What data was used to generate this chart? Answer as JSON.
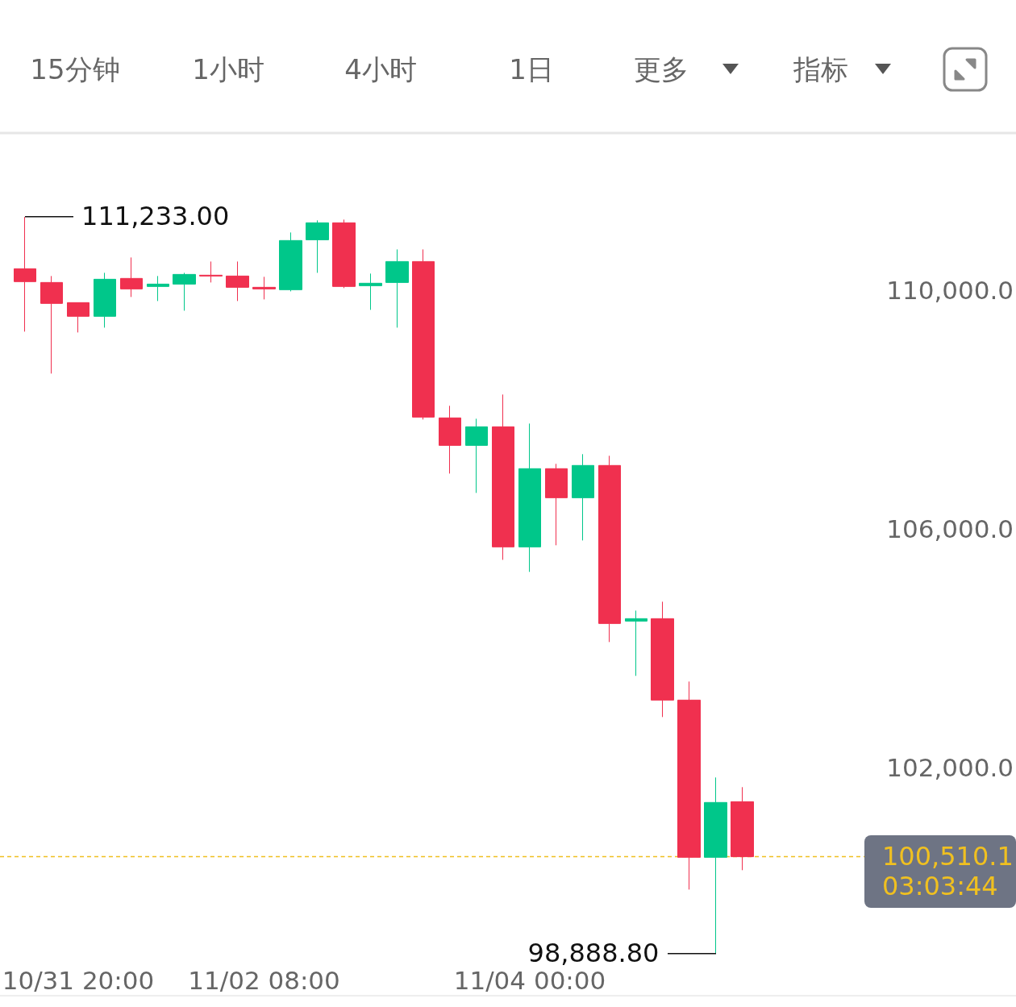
{
  "chart_data": {
    "type": "candlestick",
    "categories": [
      null,
      null,
      "10/31 20:00",
      null,
      null,
      null,
      null,
      null,
      null,
      "11/02 08:00",
      null,
      null,
      null,
      null,
      null,
      null,
      null,
      null,
      null,
      "11/04 00:00",
      null,
      null,
      null,
      null,
      null,
      null,
      null,
      null
    ],
    "ohlc": [
      [
        110365,
        111233,
        109311,
        110149
      ],
      [
        110135,
        110243,
        108608,
        109784
      ],
      [
        109797,
        109797,
        109297,
        109568
      ],
      [
        109568,
        110297,
        109378,
        110189
      ],
      [
        110203,
        110554,
        109892,
        110027
      ],
      [
        110068,
        110243,
        109824,
        110108
      ],
      [
        110108,
        110297,
        109662,
        110270
      ],
      [
        110257,
        110486,
        110135,
        110243
      ],
      [
        110243,
        110486,
        109824,
        110054
      ],
      [
        110054,
        110230,
        109851,
        110027
      ],
      [
        110014,
        110973,
        109986,
        110838
      ],
      [
        110851,
        111176,
        110297,
        111135
      ],
      [
        111135,
        111189,
        110041,
        110068
      ],
      [
        110081,
        110284,
        109676,
        110122
      ],
      [
        110135,
        110689,
        109378,
        110486
      ],
      [
        110486,
        110689,
        107838,
        107878
      ],
      [
        107865,
        108068,
        106932,
        107405
      ],
      [
        107405,
        107851,
        106608,
        107716
      ],
      [
        107716,
        108257,
        105486,
        105703
      ],
      [
        105703,
        107770,
        105284,
        107014
      ],
      [
        107014,
        107095,
        105730,
        106527
      ],
      [
        106527,
        107257,
        105811,
        107068
      ],
      [
        107068,
        107230,
        104108,
        104419
      ],
      [
        104459,
        104635,
        103541,
        104500
      ],
      [
        104500,
        104784,
        102851,
        103135
      ],
      [
        103135,
        103446,
        99959,
        100500
      ],
      [
        100500,
        101838,
        98888.8,
        101419
      ],
      [
        101432,
        101676,
        100284,
        100510.1
      ]
    ],
    "colors": [
      "#f0304f",
      "#f0304f",
      "#f0304f",
      "#00c78a",
      "#f0304f",
      "#00c78a",
      "#00c78a",
      "#f0304f",
      "#f0304f",
      "#f0304f",
      "#00c78a",
      "#00c78a",
      "#f0304f",
      "#00c78a",
      "#00c78a",
      "#f0304f",
      "#f0304f",
      "#00c78a",
      "#f0304f",
      "#00c78a",
      "#f0304f",
      "#00c78a",
      "#f0304f",
      "#00c78a",
      "#f0304f",
      "#f0304f",
      "#00c78a",
      "#f0304f"
    ],
    "ylim": [
      98180,
      112640
    ],
    "yticks": [
      {
        "value": 102000,
        "label": "102,000.0"
      },
      {
        "value": 106000,
        "label": "106,000.0"
      },
      {
        "value": 110000,
        "label": "110,000.0"
      }
    ],
    "grid": false,
    "ref_lines": [
      {
        "axis": "y",
        "value": 100510.1,
        "label": "100,510.1\n03:03:44",
        "color": "#f0c020",
        "line_style": "dashed"
      }
    ],
    "annotations": [
      "15分钟",
      "1小时",
      "4小时",
      "1日",
      "更多",
      "指标",
      "111,233.00",
      "98,888.80"
    ]
  }
}
